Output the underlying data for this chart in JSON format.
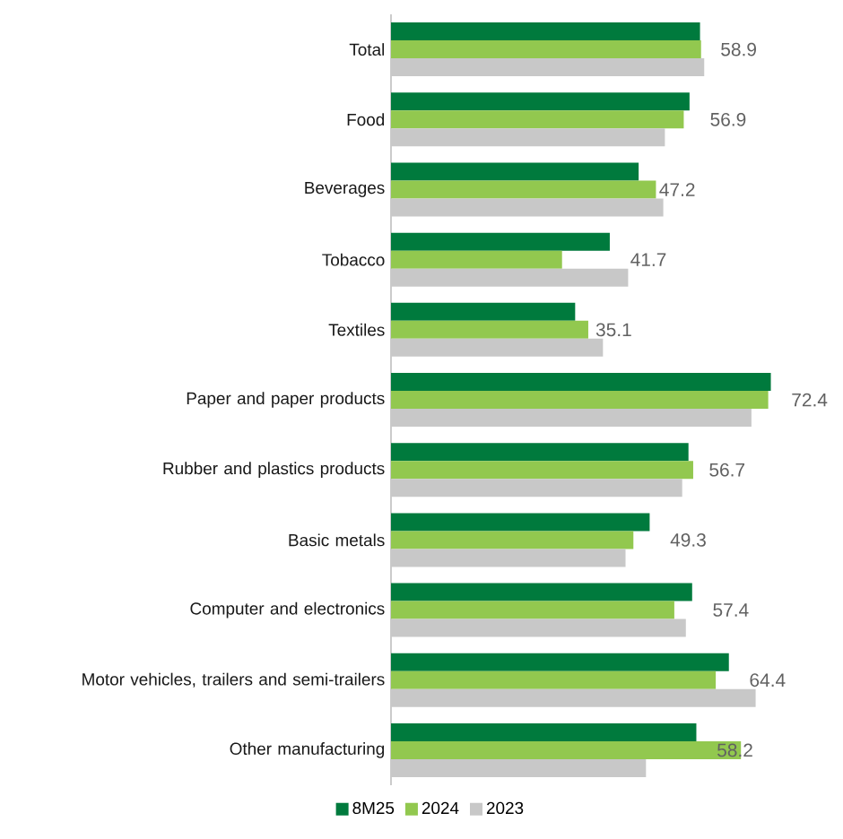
{
  "chart_data": {
    "type": "bar",
    "orientation": "horizontal",
    "legend": "bottom",
    "categories": [
      "Total",
      "Food",
      "Beverages",
      "Tobacco",
      "Textiles",
      "Paper and paper products",
      "Rubber and plastics products",
      "Basic metals",
      "Computer and electronics",
      "Motor vehicles, trailers and semi-trailers",
      "Other manufacturing"
    ],
    "series": [
      {
        "name": "8M25",
        "color": "#007a3d",
        "values": [
          58.9,
          56.9,
          47.2,
          41.7,
          35.1,
          72.4,
          56.7,
          49.3,
          57.4,
          64.4,
          58.2
        ],
        "value_labels": [
          "58.9",
          "56.9",
          "47.2",
          "41.7",
          "35.1",
          "72.4",
          "56.7",
          "49.3",
          "57.4",
          "64.4",
          "58.2"
        ]
      },
      {
        "name": "2024",
        "color": "#92c84f",
        "values": [
          59.1,
          55.8,
          50.5,
          32.6,
          37.6,
          71.9,
          57.6,
          46.2,
          54.0,
          61.9,
          66.7
        ]
      },
      {
        "name": "2023",
        "color": "#c8c8c8",
        "values": [
          59.7,
          52.2,
          51.9,
          45.2,
          40.4,
          68.7,
          55.5,
          44.7,
          56.2,
          69.5,
          48.6
        ]
      }
    ]
  }
}
